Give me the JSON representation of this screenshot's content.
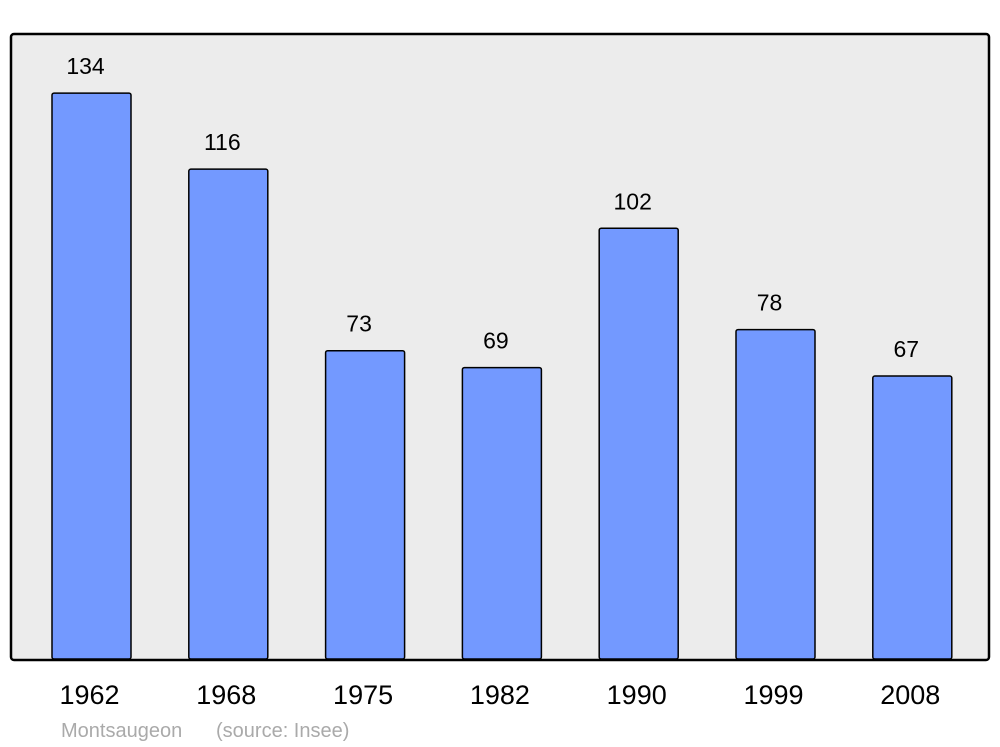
{
  "chart_data": {
    "type": "bar",
    "title": "",
    "xlabel": "",
    "ylabel": "",
    "categories": [
      "1962",
      "1968",
      "1975",
      "1982",
      "1990",
      "1999",
      "2008"
    ],
    "values": [
      134,
      116,
      73,
      69,
      102,
      78,
      67
    ],
    "ylim": [
      0,
      148
    ],
    "grid": false,
    "data_labels": true
  },
  "footer": {
    "place": "Montsaugeon",
    "source": "(source: Insee)"
  },
  "colors": {
    "bar_fill": "#7399ff",
    "plot_background": "#ececec",
    "frame": "#000000",
    "footer_text": "#aaaaaa"
  }
}
